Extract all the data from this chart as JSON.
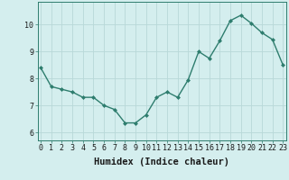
{
  "x": [
    0,
    1,
    2,
    3,
    4,
    5,
    6,
    7,
    8,
    9,
    10,
    11,
    12,
    13,
    14,
    15,
    16,
    17,
    18,
    19,
    20,
    21,
    22,
    23
  ],
  "y": [
    8.4,
    7.7,
    7.6,
    7.5,
    7.3,
    7.3,
    7.0,
    6.85,
    6.35,
    6.35,
    6.65,
    7.3,
    7.5,
    7.3,
    7.95,
    9.0,
    8.75,
    9.4,
    10.15,
    10.35,
    10.05,
    9.7,
    9.45,
    8.5
  ],
  "line_color": "#2e7d6e",
  "marker": "D",
  "marker_size": 2.0,
  "bg_color": "#d4eeee",
  "grid_color": "#b8d8d8",
  "xlabel": "Humidex (Indice chaleur)",
  "xlabel_fontsize": 7.5,
  "yticks": [
    6,
    7,
    8,
    9,
    10
  ],
  "xticks": [
    0,
    1,
    2,
    3,
    4,
    5,
    6,
    7,
    8,
    9,
    10,
    11,
    12,
    13,
    14,
    15,
    16,
    17,
    18,
    19,
    20,
    21,
    22,
    23
  ],
  "ylim": [
    5.7,
    10.85
  ],
  "xlim": [
    -0.3,
    23.3
  ],
  "tick_fontsize": 6.0,
  "linewidth": 1.0,
  "spine_color": "#2e7d6e"
}
